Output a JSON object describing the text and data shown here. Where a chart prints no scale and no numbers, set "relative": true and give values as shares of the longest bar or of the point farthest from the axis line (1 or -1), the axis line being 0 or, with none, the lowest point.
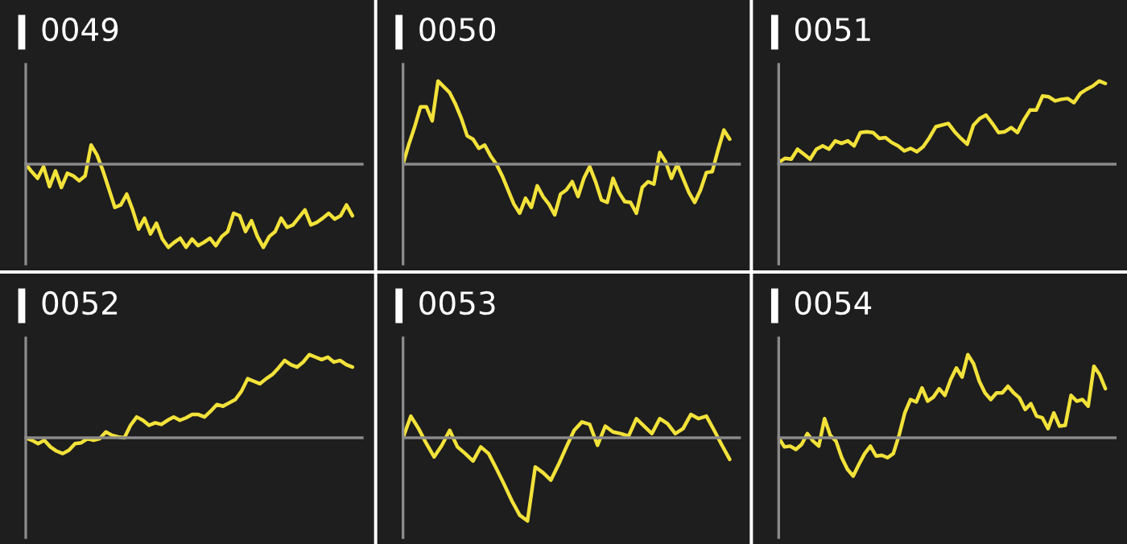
{
  "chart_data": [
    {
      "type": "line",
      "title": "0049",
      "relative": true,
      "categories": [
        null,
        null,
        null,
        null,
        null,
        null,
        null,
        null,
        null,
        null,
        null,
        null,
        null,
        null,
        null,
        null,
        null,
        null,
        null,
        null,
        null,
        null,
        null,
        null,
        null,
        null,
        null,
        null,
        null,
        null,
        null,
        null,
        null,
        null,
        null,
        null,
        null,
        null,
        null,
        null,
        null,
        null,
        null,
        null,
        null,
        null,
        null,
        null,
        null,
        null,
        null,
        null,
        null,
        null,
        null,
        null
      ],
      "series": [
        {
          "color": "#f2e23a",
          "values": [
            0,
            -0.09,
            -0.17,
            -0.03,
            -0.27,
            -0.08,
            -0.28,
            -0.11,
            -0.14,
            -0.2,
            -0.14,
            0.23,
            0.11,
            -0.08,
            -0.3,
            -0.52,
            -0.49,
            -0.36,
            -0.55,
            -0.78,
            -0.65,
            -0.84,
            -0.71,
            -0.9,
            -1,
            -0.94,
            -0.89,
            -1,
            -0.9,
            -0.98,
            -0.94,
            -0.89,
            -0.98,
            -0.87,
            -0.81,
            -0.59,
            -0.62,
            -0.81,
            -0.68,
            -0.87,
            -1,
            -0.87,
            -0.81,
            -0.65,
            -0.76,
            -0.73,
            -0.64,
            -0.55,
            -0.73,
            -0.7,
            -0.65,
            -0.59,
            -0.66,
            -0.62,
            -0.49,
            -0.62
          ]
        }
      ]
    },
    {
      "type": "line",
      "title": "0050",
      "relative": true,
      "categories": [
        null,
        null,
        null,
        null,
        null,
        null,
        null,
        null,
        null,
        null,
        null,
        null,
        null,
        null,
        null,
        null,
        null,
        null,
        null,
        null,
        null,
        null,
        null,
        null,
        null,
        null,
        null,
        null,
        null,
        null,
        null,
        null,
        null,
        null,
        null,
        null,
        null,
        null,
        null,
        null,
        null,
        null,
        null,
        null,
        null,
        null,
        null,
        null,
        null,
        null,
        null,
        null,
        null,
        null,
        null,
        null,
        null
      ],
      "series": [
        {
          "color": "#f2e23a",
          "values": [
            0,
            0.24,
            0.45,
            0.69,
            0.69,
            0.52,
            1,
            0.93,
            0.86,
            0.72,
            0.55,
            0.34,
            0.3,
            0.19,
            0.23,
            0.1,
            0,
            -0.14,
            -0.31,
            -0.48,
            -0.59,
            -0.41,
            -0.52,
            -0.26,
            -0.39,
            -0.48,
            -0.61,
            -0.36,
            -0.31,
            -0.21,
            -0.39,
            -0.17,
            -0.03,
            -0.21,
            -0.43,
            -0.46,
            -0.17,
            -0.34,
            -0.45,
            -0.46,
            -0.59,
            -0.28,
            -0.21,
            -0.24,
            0.14,
            0.03,
            -0.17,
            0,
            -0.17,
            -0.34,
            -0.46,
            -0.31,
            -0.1,
            -0.09,
            0.17,
            0.41,
            0.3
          ]
        }
      ]
    },
    {
      "type": "line",
      "title": "0051",
      "relative": true,
      "categories": [
        null,
        null,
        null,
        null,
        null,
        null,
        null,
        null,
        null,
        null,
        null,
        null,
        null,
        null,
        null,
        null,
        null,
        null,
        null,
        null,
        null,
        null,
        null,
        null,
        null,
        null,
        null,
        null,
        null,
        null,
        null,
        null,
        null,
        null,
        null,
        null,
        null,
        null,
        null,
        null,
        null,
        null,
        null,
        null,
        null,
        null,
        null,
        null,
        null,
        null,
        null,
        null,
        null
      ],
      "series": [
        {
          "color": "#f2e23a",
          "values": [
            0.02,
            0.07,
            0.06,
            0.18,
            0.12,
            0.06,
            0.18,
            0.22,
            0.18,
            0.28,
            0.25,
            0.28,
            0.22,
            0.38,
            0.39,
            0.38,
            0.31,
            0.32,
            0.26,
            0.22,
            0.16,
            0.19,
            0.15,
            0.21,
            0.32,
            0.45,
            0.47,
            0.49,
            0.39,
            0.31,
            0.24,
            0.47,
            0.55,
            0.59,
            0.49,
            0.38,
            0.39,
            0.44,
            0.38,
            0.53,
            0.65,
            0.65,
            0.82,
            0.81,
            0.76,
            0.78,
            0.79,
            0.74,
            0.85,
            0.9,
            0.94,
            1,
            0.97
          ]
        }
      ]
    },
    {
      "type": "line",
      "title": "0052",
      "relative": true,
      "categories": [
        null,
        null,
        null,
        null,
        null,
        null,
        null,
        null,
        null,
        null,
        null,
        null,
        null,
        null,
        null,
        null,
        null,
        null,
        null,
        null,
        null,
        null,
        null,
        null,
        null,
        null,
        null,
        null,
        null,
        null,
        null,
        null,
        null,
        null,
        null,
        null,
        null,
        null,
        null,
        null,
        null,
        null,
        null,
        null,
        null,
        null,
        null,
        null,
        null,
        null,
        null,
        null,
        null,
        null
      ],
      "series": [
        {
          "color": "#f2e23a",
          "values": [
            0,
            -0.03,
            -0.07,
            -0.03,
            -0.11,
            -0.16,
            -0.19,
            -0.15,
            -0.07,
            -0.06,
            -0.01,
            -0.03,
            -0.01,
            0.07,
            0.03,
            0.01,
            0,
            0.15,
            0.25,
            0.21,
            0.15,
            0.18,
            0.16,
            0.21,
            0.25,
            0.21,
            0.24,
            0.28,
            0.28,
            0.25,
            0.32,
            0.4,
            0.38,
            0.42,
            0.46,
            0.56,
            0.71,
            0.68,
            0.65,
            0.71,
            0.76,
            0.84,
            0.93,
            0.88,
            0.85,
            0.91,
            1,
            0.97,
            0.94,
            0.97,
            0.91,
            0.93,
            0.88,
            0.85
          ]
        }
      ]
    },
    {
      "type": "line",
      "title": "0053",
      "relative": true,
      "categories": [
        null,
        null,
        null,
        null,
        null,
        null,
        null,
        null,
        null,
        null,
        null,
        null,
        null,
        null,
        null,
        null,
        null,
        null,
        null,
        null,
        null,
        null,
        null,
        null,
        null,
        null,
        null,
        null,
        null,
        null,
        null,
        null,
        null,
        null,
        null,
        null,
        null,
        null,
        null,
        null,
        null,
        null,
        null
      ],
      "series": [
        {
          "color": "#f2e23a",
          "values": [
            0,
            0.26,
            0.11,
            -0.07,
            -0.23,
            -0.09,
            0.09,
            -0.11,
            -0.19,
            -0.28,
            -0.11,
            -0.19,
            -0.37,
            -0.56,
            -0.76,
            -0.93,
            -1,
            -0.35,
            -0.42,
            -0.51,
            -0.32,
            -0.11,
            0.09,
            0.19,
            0.16,
            -0.09,
            0.14,
            0.07,
            0.05,
            0.02,
            0.23,
            0.14,
            0.05,
            0.23,
            0.17,
            0.05,
            0.11,
            0.28,
            0.23,
            0.26,
            0.09,
            -0.09,
            -0.26
          ]
        }
      ]
    },
    {
      "type": "line",
      "title": "0054",
      "relative": true,
      "categories": [
        null,
        null,
        null,
        null,
        null,
        null,
        null,
        null,
        null,
        null,
        null,
        null,
        null,
        null,
        null,
        null,
        null,
        null,
        null,
        null,
        null,
        null,
        null,
        null,
        null,
        null,
        null,
        null,
        null,
        null,
        null,
        null,
        null,
        null,
        null,
        null,
        null,
        null,
        null,
        null,
        null,
        null,
        null,
        null,
        null,
        null,
        null,
        null,
        null,
        null,
        null,
        null,
        null,
        null,
        null,
        null,
        null,
        null
      ],
      "series": [
        {
          "color": "#f2e23a",
          "values": [
            0,
            -0.11,
            -0.1,
            -0.14,
            -0.08,
            0.05,
            -0.04,
            -0.1,
            0.23,
            0.03,
            -0.04,
            -0.24,
            -0.38,
            -0.46,
            -0.32,
            -0.19,
            -0.1,
            -0.22,
            -0.21,
            -0.24,
            -0.19,
            0.03,
            0.3,
            0.46,
            0.43,
            0.6,
            0.44,
            0.49,
            0.59,
            0.51,
            0.7,
            0.84,
            0.73,
            1,
            0.89,
            0.68,
            0.54,
            0.46,
            0.54,
            0.54,
            0.62,
            0.54,
            0.48,
            0.34,
            0.41,
            0.26,
            0.24,
            0.11,
            0.3,
            0.14,
            0.15,
            0.51,
            0.44,
            0.46,
            0.38,
            0.86,
            0.76,
            0.59
          ]
        }
      ]
    }
  ]
}
